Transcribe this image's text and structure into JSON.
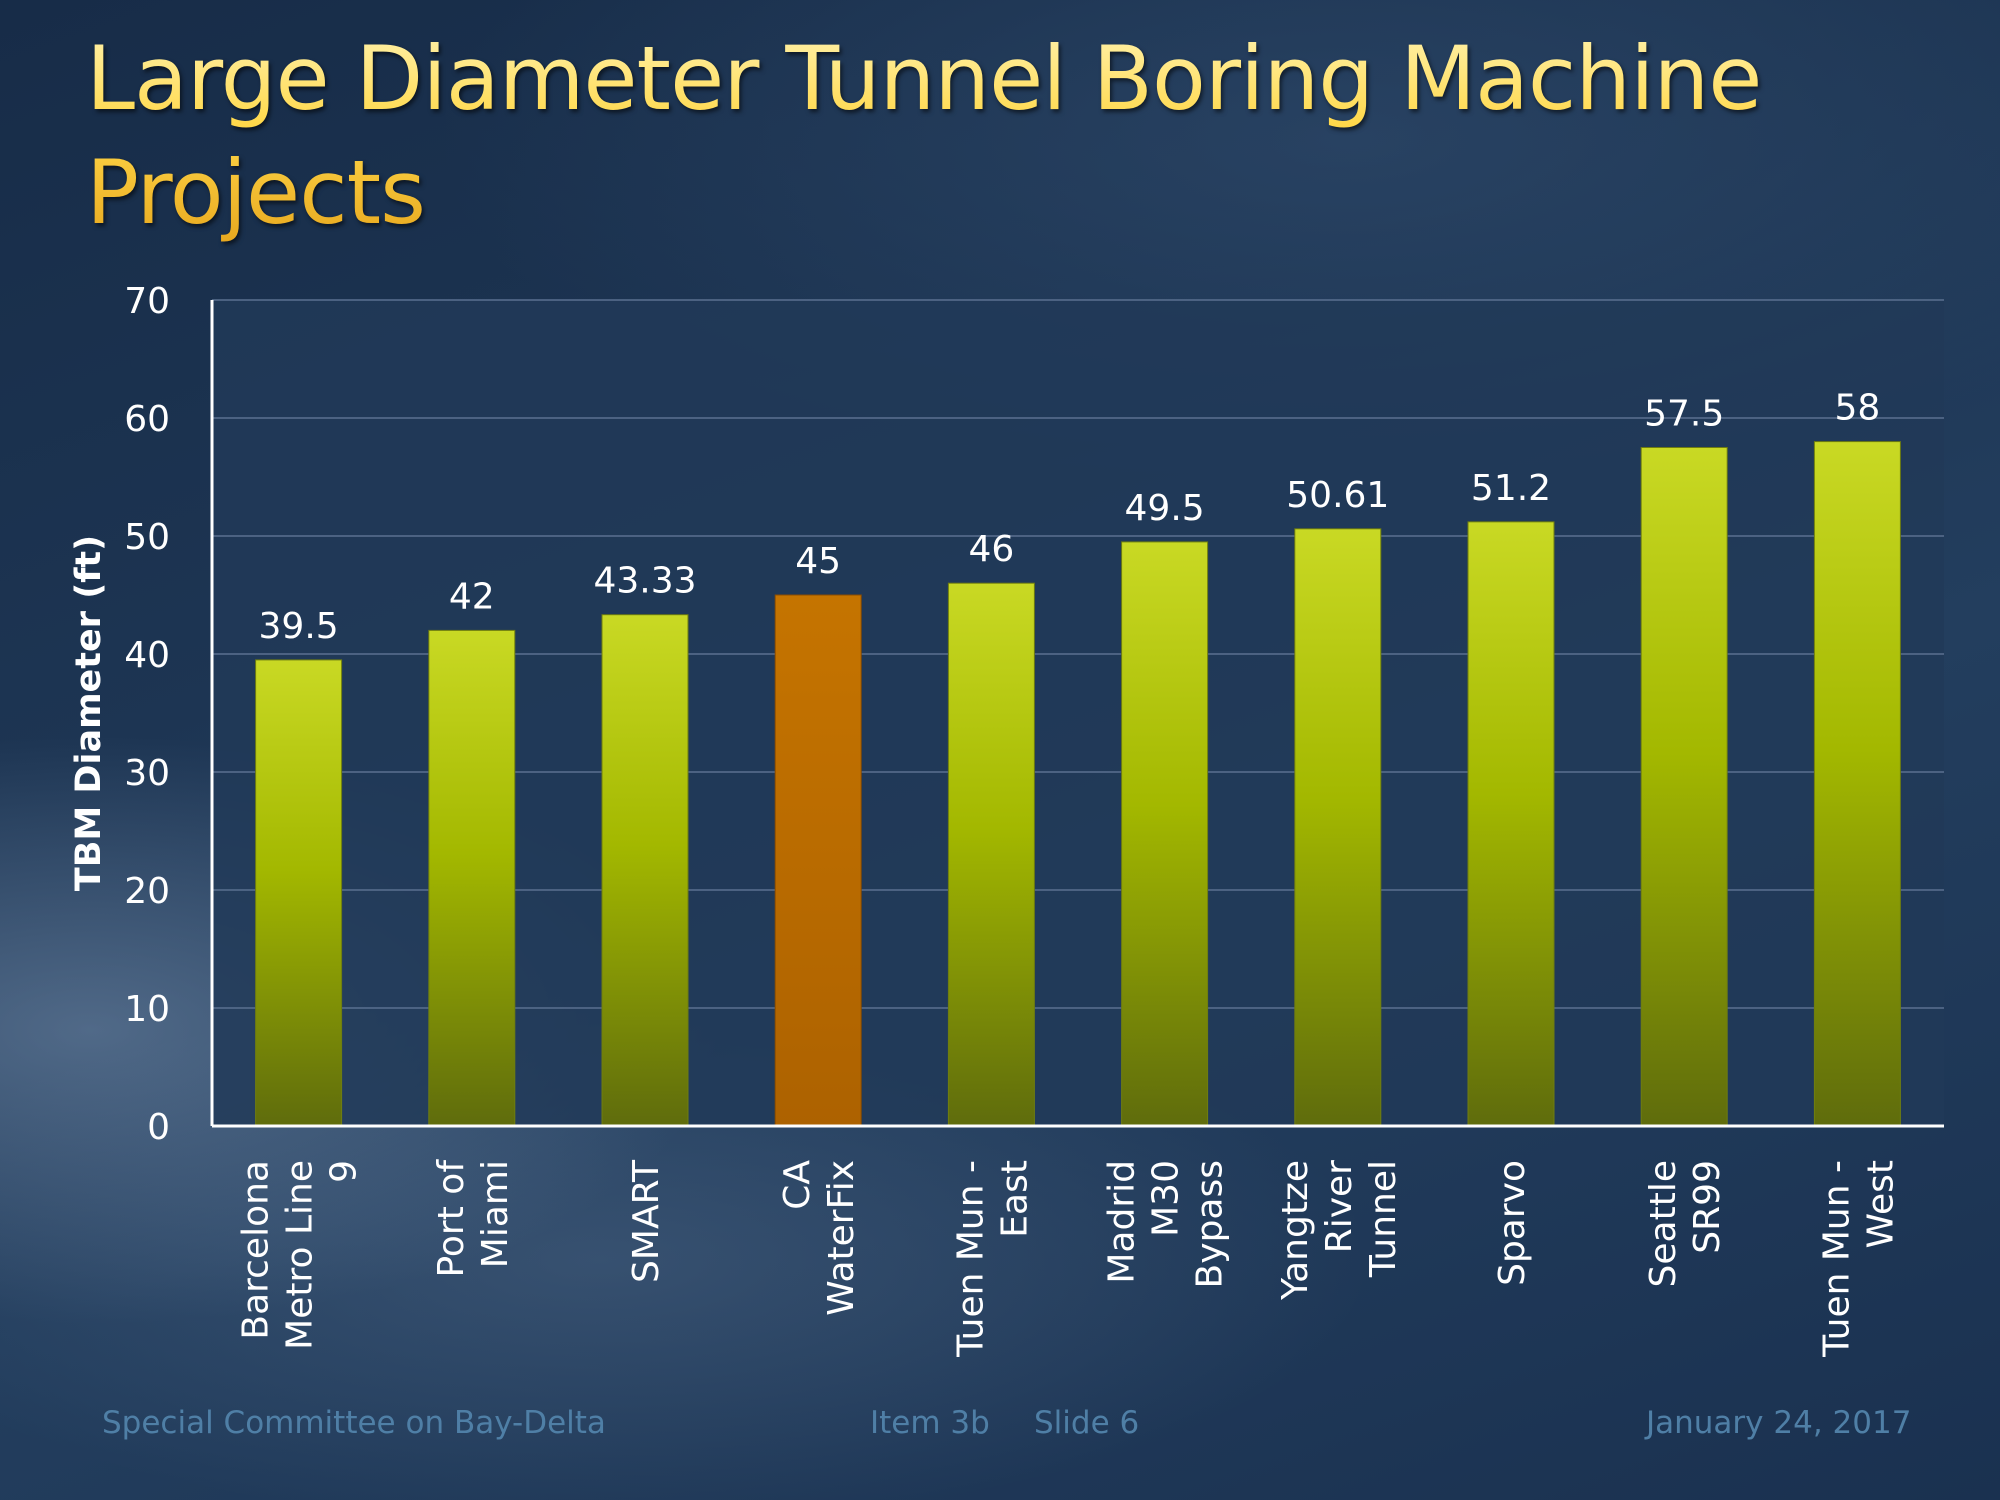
{
  "slide": {
    "title": "Large Diameter Tunnel Boring Machine Projects"
  },
  "colors": {
    "bar": "#a8c000",
    "bar_highlight": "#b86a00",
    "plot_area": "#223a5c",
    "gridline": "#5a7090",
    "title_gold": "#f7d255"
  },
  "chart_data": {
    "type": "bar",
    "categories": [
      [
        "Barcelona",
        "Metro Line",
        "9"
      ],
      [
        "Port of",
        "Miami"
      ],
      [
        "SMART"
      ],
      [
        "CA",
        "WaterFix"
      ],
      [
        "Tuen Mun -",
        "East"
      ],
      [
        "Madrid",
        "M30",
        "Bypass"
      ],
      [
        "Yangtze",
        "River",
        "Tunnel"
      ],
      [
        "Sparvo"
      ],
      [
        "Seattle",
        "SR99"
      ],
      [
        "Tuen Mun -",
        "West"
      ]
    ],
    "values": [
      39.5,
      42,
      43.33,
      45,
      46,
      49.5,
      50.61,
      51.2,
      57.5,
      58
    ],
    "data_labels": [
      "39.5",
      "42",
      "43.33",
      "45",
      "46",
      "49.5",
      "50.61",
      "51.2",
      "57.5",
      "58"
    ],
    "highlight_index": 3,
    "title": "",
    "xlabel": "",
    "ylabel": "TBM Diameter (ft)",
    "ylim": [
      0,
      70
    ],
    "yticks": [
      0,
      10,
      20,
      30,
      40,
      50,
      60,
      70
    ],
    "grid": true,
    "legend": "none"
  },
  "footer": {
    "committee": "Special Committee on Bay-Delta",
    "item": "Item 3b",
    "slide": "Slide 6",
    "date": "January 24, 2017"
  }
}
